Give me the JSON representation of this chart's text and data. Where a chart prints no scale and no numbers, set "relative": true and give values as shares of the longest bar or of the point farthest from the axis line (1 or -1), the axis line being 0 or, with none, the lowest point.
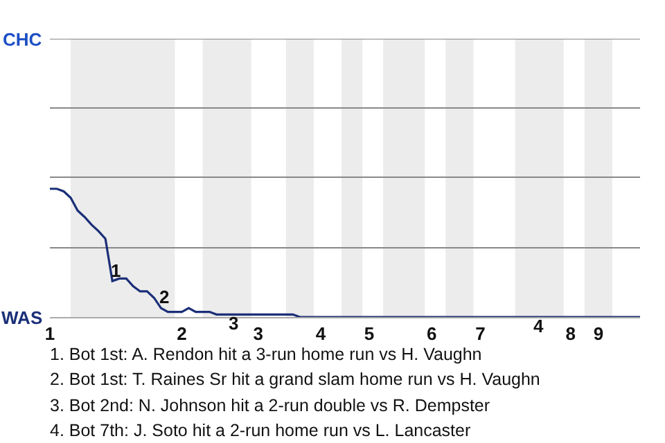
{
  "chart_data": {
    "type": "line",
    "relative": true,
    "categories": [
      "1",
      null,
      null,
      null,
      null,
      null,
      null,
      null,
      null,
      null,
      null,
      null,
      null,
      null,
      null,
      null,
      null,
      null,
      null,
      "2",
      null,
      null,
      null,
      null,
      null,
      null,
      null,
      null,
      null,
      null,
      "3",
      null,
      null,
      null,
      null,
      null,
      null,
      null,
      null,
      "4",
      null,
      null,
      null,
      null,
      null,
      null,
      "5",
      null,
      null,
      null,
      null,
      null,
      null,
      null,
      null,
      "6",
      null,
      null,
      null,
      null,
      null,
      null,
      "7",
      null,
      null,
      null,
      null,
      null,
      null,
      null,
      null,
      null,
      null,
      null,
      null,
      "8",
      null,
      null,
      null,
      "9",
      null,
      null,
      null,
      null,
      null,
      null
    ],
    "series": [
      {
        "color": "#1b2f78",
        "values": [
          1,
          1,
          0.98,
          0.93,
          0.83,
          0.78,
          0.72,
          0.67,
          0.61,
          0.28,
          0.3,
          0.3,
          0.24,
          0.2,
          0.2,
          0.15,
          0.07,
          0.04,
          0.04,
          0.04,
          0.07,
          0.04,
          0.04,
          0.04,
          0.02,
          0.02,
          0.02,
          0.02,
          0.02,
          0.02,
          0.02,
          0.02,
          0.02,
          0.02,
          0.02,
          0.02,
          0,
          0,
          0,
          0,
          0,
          0,
          0,
          0,
          0,
          0,
          0,
          0,
          0,
          0,
          0,
          0,
          0,
          0,
          0,
          0,
          0,
          0,
          0,
          0,
          0,
          0,
          0,
          0,
          0,
          0,
          0,
          0,
          0,
          0,
          0,
          0,
          0,
          0,
          0,
          0,
          0,
          0,
          0,
          0,
          0,
          0,
          0,
          0,
          0,
          0
        ]
      }
    ],
    "ref_lines": [
      {
        "axis": "y",
        "value": 0.54,
        "color": "#888888"
      },
      {
        "axis": "y",
        "value": 1.09,
        "color": "#888888"
      },
      {
        "axis": "y",
        "value": 1.63,
        "color": "#888888"
      },
      {
        "axis": "y",
        "value": 2.17,
        "color": "#888888"
      }
    ],
    "marker": "none",
    "annotations": [
      "CHC",
      "WAS",
      {
        "text": "1",
        "y": 0.28
      },
      {
        "text": "2",
        "y": 0.07
      },
      {
        "text": "3",
        "y": 0.02
      },
      {
        "text": "4",
        "y": 0
      },
      "1. Bot 1st: A. Rendon hit a 3-run home run vs H. Vaughn",
      "2. Bot 1st: T. Raines Sr hit a grand slam home run vs H. Vaughn",
      "3. Bot 2nd: N. Johnson hit a 2-run double vs R. Dempster",
      "4. Bot 7th: J. Soto hit a 2-run home run vs L. Lancaster"
    ]
  }
}
